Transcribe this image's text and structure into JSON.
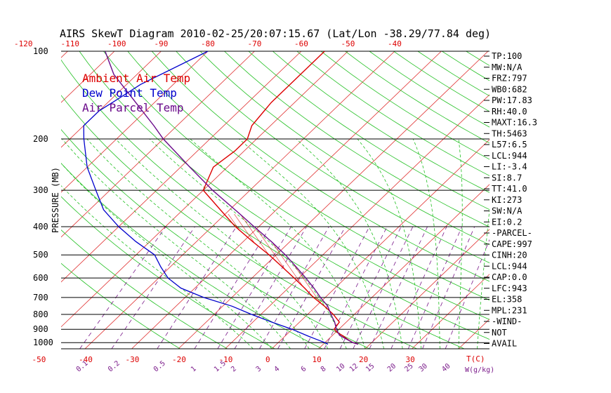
{
  "chart_data": {
    "type": "line",
    "title": "AIRS SkewT Diagram 2010-02-25/20:07:15.67 (Lat/Lon -38.29/77.84 deg)",
    "ylabel": "PRESSURE (MB)",
    "xlabel_bottom": "T(C)",
    "mixing_unit_label": "W(g/kg)",
    "y_scale": "log",
    "ylim": [
      1050,
      100
    ],
    "y_ticks": [
      "100",
      "200",
      "300",
      "400",
      "500",
      "600",
      "700",
      "800",
      "900",
      "1000"
    ],
    "x_ticks_bottom": [
      "-50",
      "-40",
      "-30",
      "-20",
      "-10",
      "0",
      "10",
      "20",
      "30"
    ],
    "x_ticks_top": [
      "-120",
      "-110",
      "-100",
      "-90",
      "-80",
      "-70",
      "-60",
      "-50",
      "-40"
    ],
    "mixing_ratio_labels": [
      "0.1",
      "0.2",
      "0.5",
      "1",
      "1.5",
      "2",
      "3",
      "4",
      "6",
      "8",
      "10",
      "12",
      "15",
      "20",
      "25",
      "30",
      "40"
    ],
    "legend": [
      {
        "label": "Ambient Air Temp",
        "color": "#dd0000"
      },
      {
        "label": "Dew Point Temp",
        "color": "#0000cc"
      },
      {
        "label": "Air Parcel Temp",
        "color": "#6a0a8a"
      }
    ],
    "series": [
      {
        "name": "Ambient Air Temp",
        "color": "#dd0000",
        "pressure": [
          1013,
          1000,
          980,
          950,
          920,
          900,
          850,
          800,
          750,
          700,
          650,
          600,
          550,
          500,
          450,
          400,
          350,
          300,
          250,
          220,
          200,
          180,
          150,
          120,
          100
        ],
        "temperature": [
          17.5,
          16,
          14.5,
          12.5,
          10.2,
          9.0,
          8.5,
          5.5,
          1.8,
          -2.5,
          -6.5,
          -11,
          -16,
          -21.5,
          -28,
          -35,
          -42,
          -50,
          -53,
          -52,
          -52,
          -54,
          -55,
          -55,
          -55
        ]
      },
      {
        "name": "Dew Point Temp",
        "color": "#0000cc",
        "pressure": [
          1013,
          1000,
          970,
          950,
          900,
          850,
          800,
          750,
          700,
          650,
          600,
          550,
          500,
          450,
          400,
          350,
          300,
          250,
          200,
          180,
          160,
          150,
          130,
          100
        ],
        "temperature": [
          11,
          10,
          7,
          5,
          0,
          -6,
          -12,
          -18,
          -26,
          -33,
          -38,
          -42,
          -46,
          -53,
          -60,
          -67,
          -73,
          -80,
          -87,
          -90,
          -90,
          -89,
          -87,
          -80
        ]
      },
      {
        "name": "Air Parcel Temp",
        "color": "#6a0a8a",
        "pressure": [
          1013,
          1000,
          950,
          944,
          900,
          850,
          800,
          750,
          700,
          650,
          600,
          550,
          500,
          450,
          400,
          358,
          300,
          250,
          200,
          180,
          150,
          120,
          100
        ],
        "temperature": [
          17.5,
          16,
          12,
          11.5,
          9.5,
          7.5,
          5.0,
          2.5,
          -1.0,
          -4.5,
          -8.5,
          -13,
          -18,
          -24,
          -31,
          -37.5,
          -48,
          -58,
          -70,
          -75,
          -84,
          -95,
          -102
        ]
      }
    ],
    "indices": [
      "TP:100",
      "MW:N/A",
      "FRZ:797",
      "WB0:682",
      "PW:17.83",
      "RH:40.0",
      "MAXT:16.3",
      "TH:5463",
      "L57:6.5",
      "LCL:944",
      "LI:-3.4",
      "SI:8.7",
      "TT:41.0",
      "KI:273",
      "SW:N/A",
      "EI:0.2",
      "-PARCEL-",
      "CAPE:997",
      "CINH:20",
      "LCL:944",
      "CAP:0.0",
      "LFC:943",
      "EL:358",
      "MPL:231",
      "-WIND-",
      "NOT",
      "AVAIL"
    ],
    "grid": true,
    "legend_placement": "top-left"
  }
}
